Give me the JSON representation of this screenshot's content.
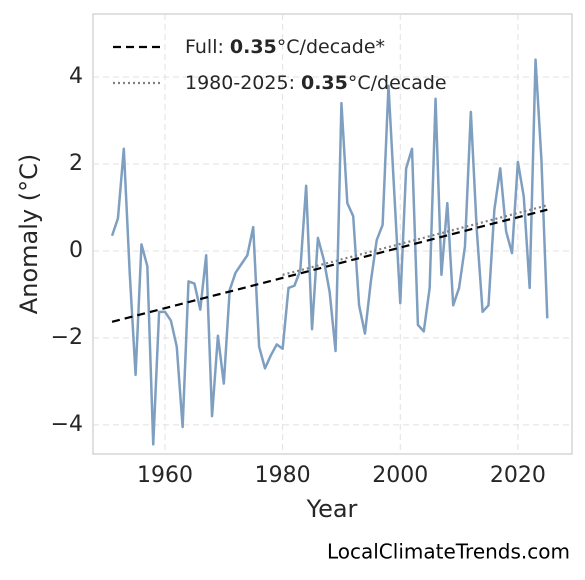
{
  "chart_data": {
    "type": "line",
    "x_label": "Year",
    "y_label": "Anomaly (°C)",
    "watermark": "LocalClimateTrends.com",
    "xlim": [
      1947.76,
      2029.2
    ],
    "ylim": [
      -4.67,
      5.45
    ],
    "xticks": [
      1960,
      1980,
      2000,
      2020
    ],
    "yticks": [
      {
        "value": -4,
        "label": "−4"
      },
      {
        "value": -2,
        "label": "−2"
      },
      0,
      2,
      4
    ],
    "grid": true,
    "legend": "upper left",
    "x": [
      1951,
      1952,
      1953,
      1954,
      1955,
      1956,
      1957,
      1958,
      1959,
      1960,
      1961,
      1962,
      1963,
      1964,
      1965,
      1966,
      1967,
      1968,
      1969,
      1970,
      1971,
      1972,
      1973,
      1974,
      1975,
      1976,
      1977,
      1978,
      1979,
      1980,
      1981,
      1982,
      1983,
      1984,
      1985,
      1986,
      1987,
      1988,
      1989,
      1990,
      1991,
      1992,
      1993,
      1994,
      1995,
      1996,
      1997,
      1998,
      1999,
      2000,
      2001,
      2002,
      2003,
      2004,
      2005,
      2006,
      2007,
      2008,
      2009,
      2010,
      2011,
      2012,
      2013,
      2014,
      2015,
      2016,
      2017,
      2018,
      2019,
      2020,
      2021,
      2022,
      2023,
      2024,
      2025
    ],
    "series": [
      {
        "color": "#7f9fc0",
        "values": [
          0.35,
          0.75,
          2.35,
          -0.5,
          -2.85,
          0.15,
          -0.35,
          -4.45,
          -1.4,
          -1.4,
          -1.6,
          -2.2,
          -4.05,
          -0.7,
          -0.75,
          -1.35,
          -0.1,
          -3.8,
          -1.95,
          -3.05,
          -0.9,
          -0.5,
          -0.3,
          -0.1,
          0.55,
          -2.2,
          -2.7,
          -2.4,
          -2.15,
          -2.25,
          -0.85,
          -0.8,
          -0.45,
          1.5,
          -1.8,
          0.3,
          -0.2,
          -0.95,
          -2.3,
          3.4,
          1.1,
          0.8,
          -1.25,
          -1.9,
          -0.7,
          0.25,
          0.6,
          3.8,
          1.3,
          -1.2,
          1.9,
          2.35,
          -1.7,
          -1.85,
          -0.85,
          3.5,
          -0.55,
          1.1,
          -1.25,
          -0.85,
          0.1,
          3.2,
          0.5,
          -1.4,
          -1.25,
          0.95,
          1.9,
          0.45,
          -0.05,
          2.05,
          1.25,
          -0.85,
          4.4,
          2.1,
          -1.55
        ]
      }
    ],
    "trends": [
      {
        "name": "Full:",
        "rate": "0.35",
        "unit": "°C/decade*",
        "color": "#000000",
        "style": "dashed",
        "x": [
          1951,
          2025
        ],
        "values": [
          -1.63,
          0.95
        ]
      },
      {
        "name": "1980-2025:",
        "rate": "0.35",
        "unit": "°C/decade",
        "color": "#808080",
        "style": "dotted",
        "x": [
          1980,
          2025
        ],
        "values": [
          -0.55,
          1.05
        ]
      }
    ]
  }
}
